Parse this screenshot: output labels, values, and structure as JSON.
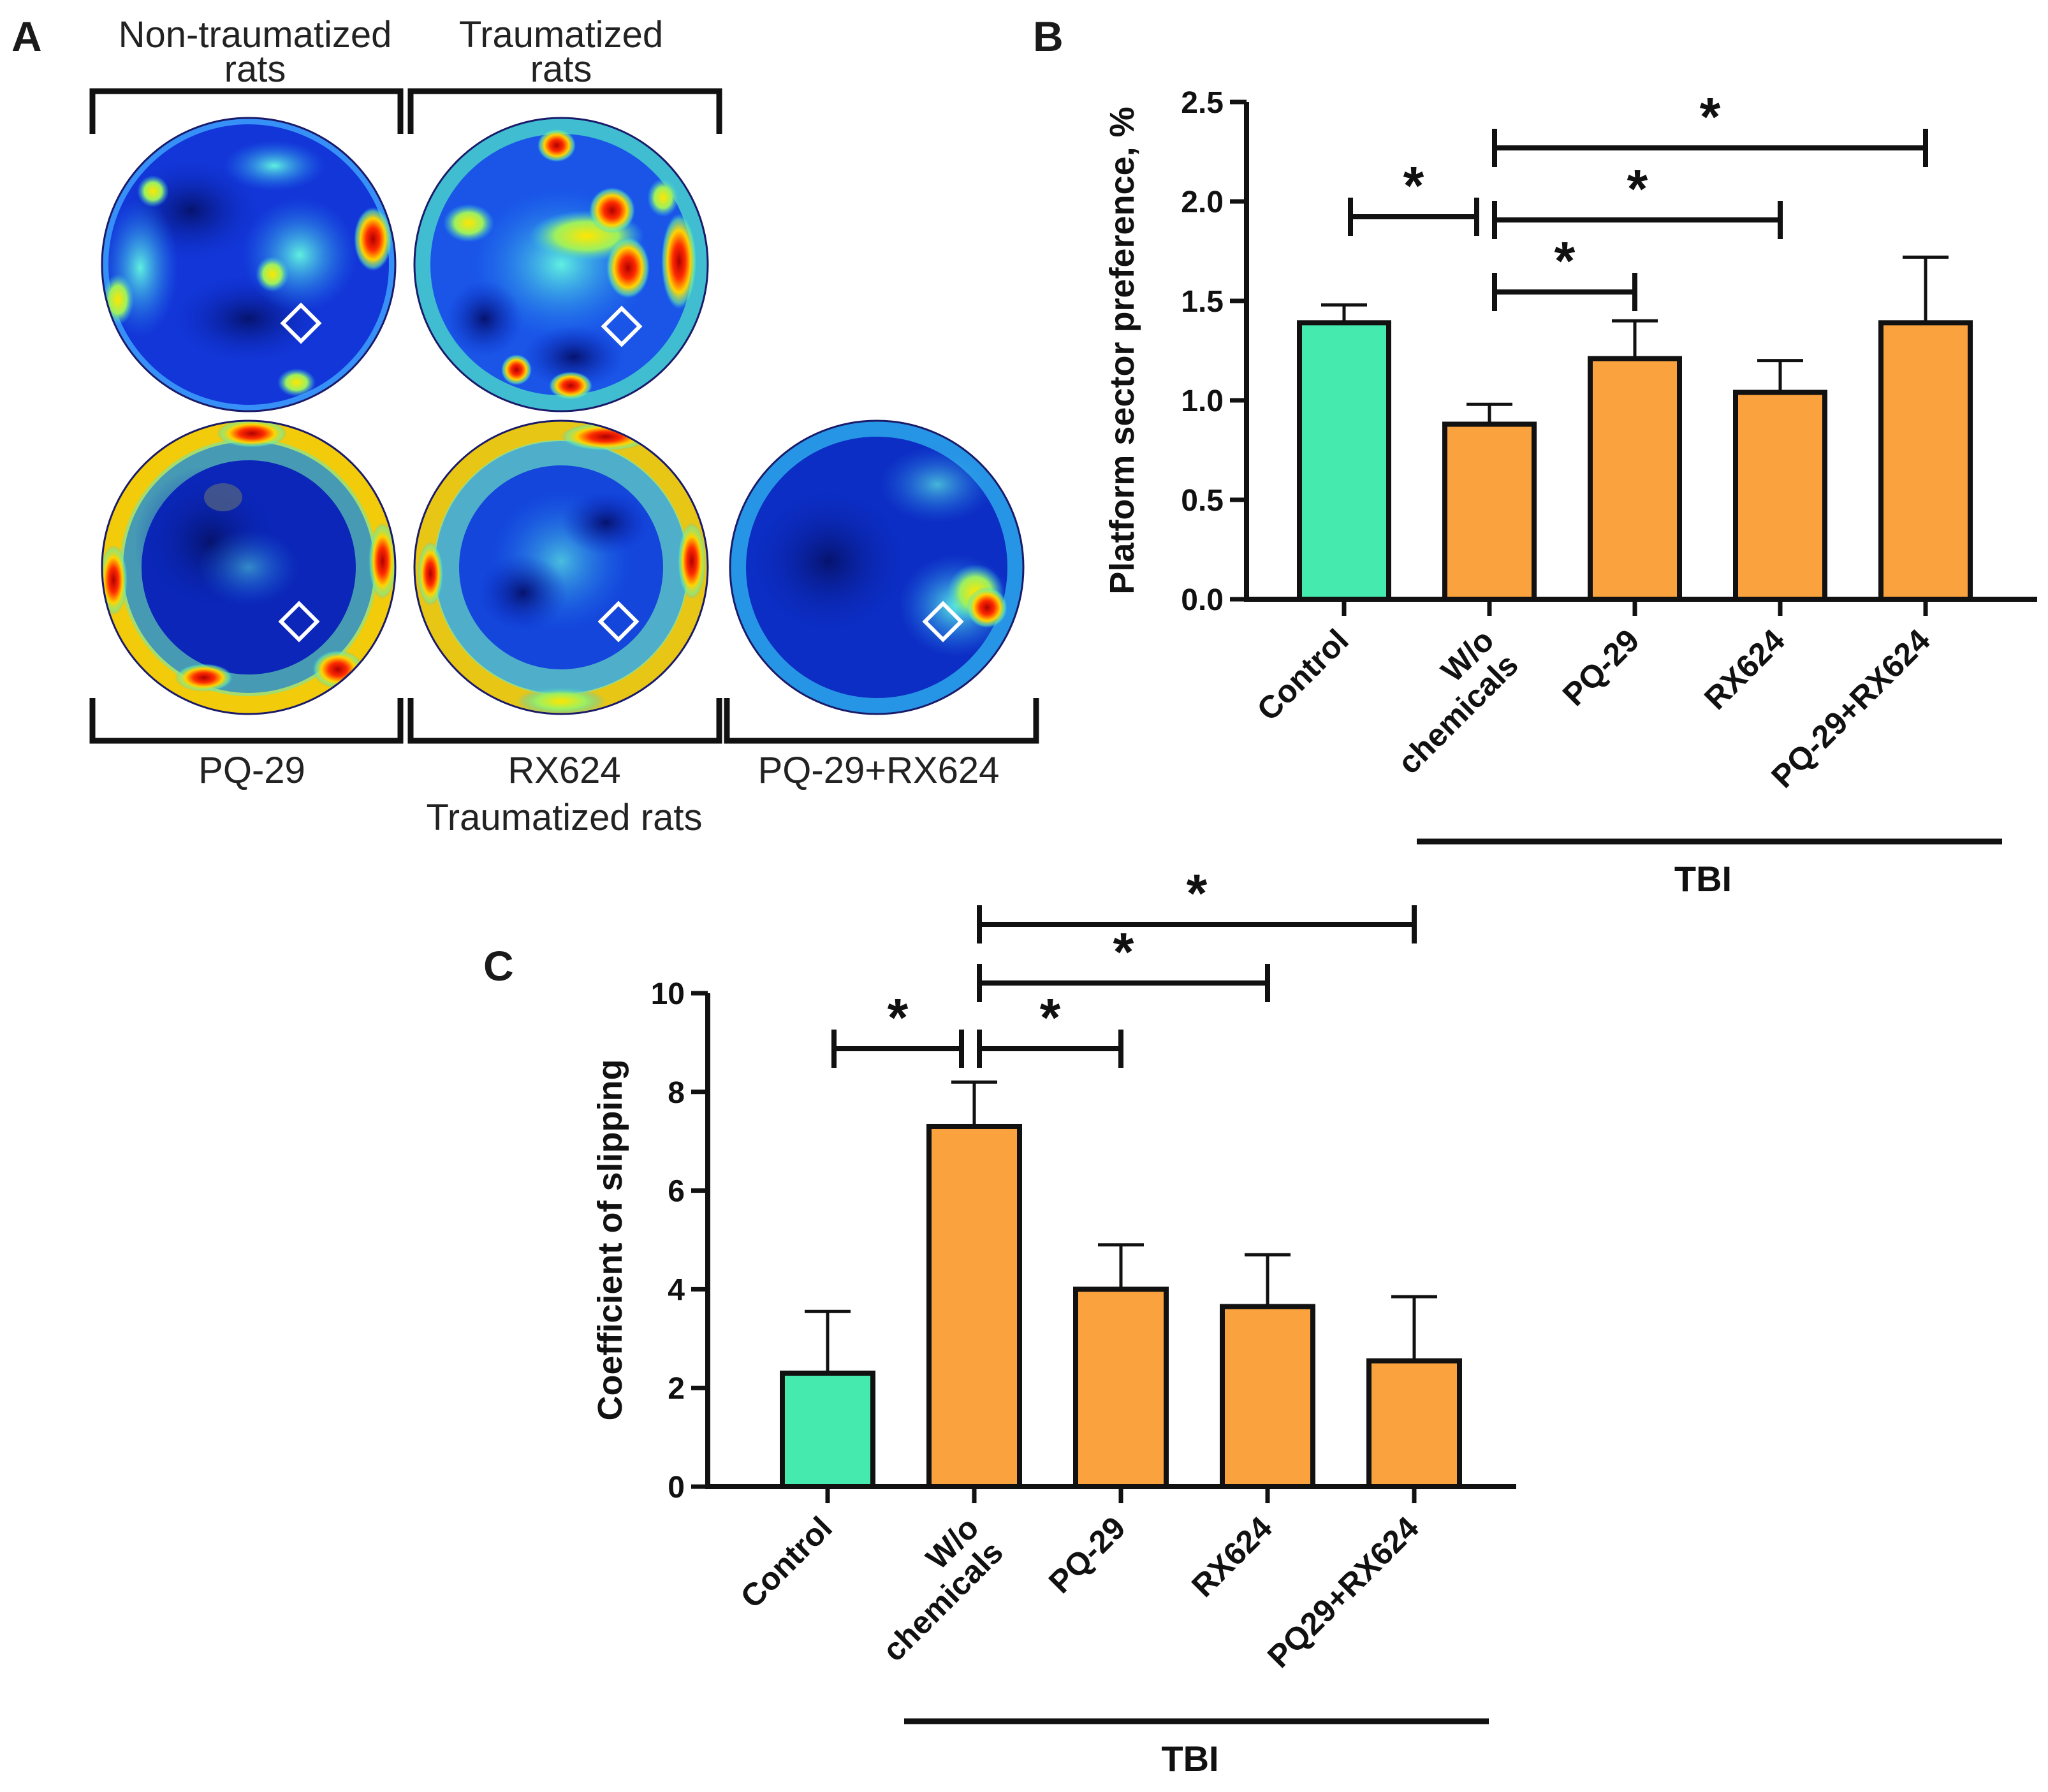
{
  "panel_a": {
    "letter": "A",
    "top_left_label": [
      "Non-traumatized",
      "rats"
    ],
    "top_right_label": [
      "Traumatized",
      "rats"
    ],
    "bottom_labels": [
      "PQ-29",
      "RX624",
      "PQ-29+RX624"
    ],
    "bottom_caption": "Traumatized rats"
  },
  "chart_data": [
    {
      "panel": "B",
      "type": "bar",
      "categories": [
        "Control",
        "W/o chemicals",
        "PQ-29",
        "RX624",
        "PQ-29+RX624"
      ],
      "values": [
        1.39,
        0.88,
        1.21,
        1.04,
        1.39
      ],
      "errors": [
        0.09,
        0.1,
        0.19,
        0.16,
        0.33
      ],
      "colors": [
        "#45EAAF",
        "#F9A23E",
        "#F9A23E",
        "#F9A23E",
        "#F9A23E"
      ],
      "ylabel": "Platform sector preference, %",
      "ylim": [
        0,
        2.5
      ],
      "yticks": [
        "0.0",
        "0.5",
        "1.0",
        "1.5",
        "2.0",
        "2.5"
      ],
      "group_label": "TBI",
      "significance": [
        {
          "from": 0,
          "to": 1,
          "label": "*"
        },
        {
          "from": 1,
          "to": 2,
          "label": "*"
        },
        {
          "from": 1,
          "to": 3,
          "label": "*"
        },
        {
          "from": 1,
          "to": 4,
          "label": "*"
        }
      ]
    },
    {
      "panel": "C",
      "type": "bar",
      "categories": [
        "Control",
        "W/o chemicals",
        "PQ-29",
        "RX624",
        "PQ29+RX624"
      ],
      "values": [
        2.3,
        7.3,
        4.0,
        3.65,
        2.55
      ],
      "errors": [
        1.25,
        0.9,
        0.9,
        1.05,
        1.3
      ],
      "colors": [
        "#45EAAF",
        "#F9A23E",
        "#F9A23E",
        "#F9A23E",
        "#F9A23E"
      ],
      "ylabel": "Coefficient of slipping",
      "ylim": [
        0,
        10
      ],
      "yticks": [
        "0",
        "2",
        "4",
        "6",
        "8",
        "10"
      ],
      "group_label": "TBI",
      "significance": [
        {
          "from": 0,
          "to": 1,
          "label": "*"
        },
        {
          "from": 1,
          "to": 2,
          "label": "*"
        },
        {
          "from": 1,
          "to": 3,
          "label": "*"
        },
        {
          "from": 1,
          "to": 4,
          "label": "*"
        }
      ]
    }
  ]
}
